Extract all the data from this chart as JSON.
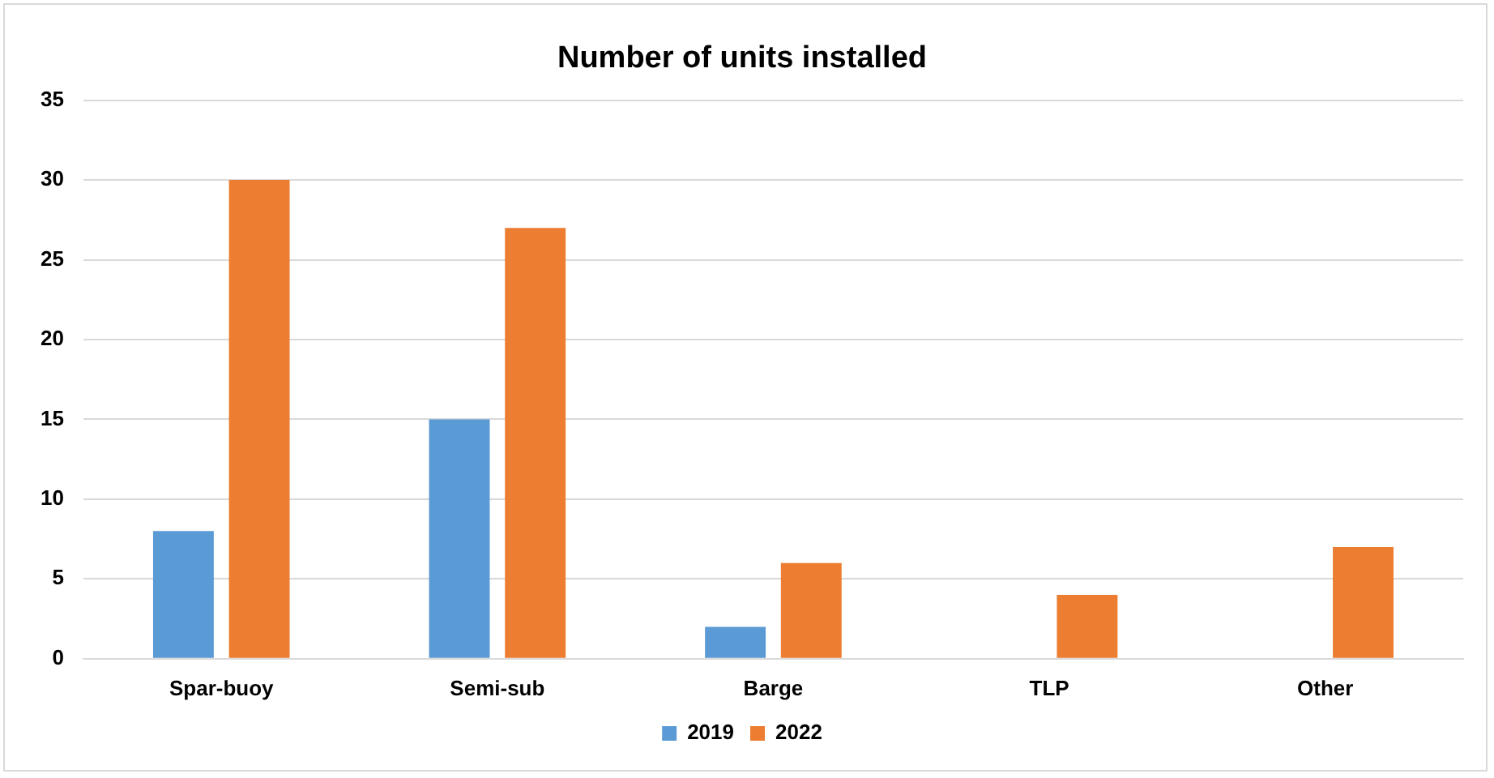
{
  "chart_data": {
    "type": "bar",
    "title": "Number of units installed",
    "categories": [
      "Spar-buoy",
      "Semi-sub",
      "Barge",
      "TLP",
      "Other"
    ],
    "series": [
      {
        "name": "2019",
        "color": "#5b9bd5",
        "values": [
          8,
          15,
          2,
          0,
          0
        ]
      },
      {
        "name": "2022",
        "color": "#ed7d31",
        "values": [
          30,
          27,
          6,
          4,
          7
        ]
      }
    ],
    "ylim": [
      0,
      35
    ],
    "yticks": [
      0,
      5,
      10,
      15,
      20,
      25,
      30,
      35
    ],
    "grid": "y",
    "legend": "bottom"
  }
}
